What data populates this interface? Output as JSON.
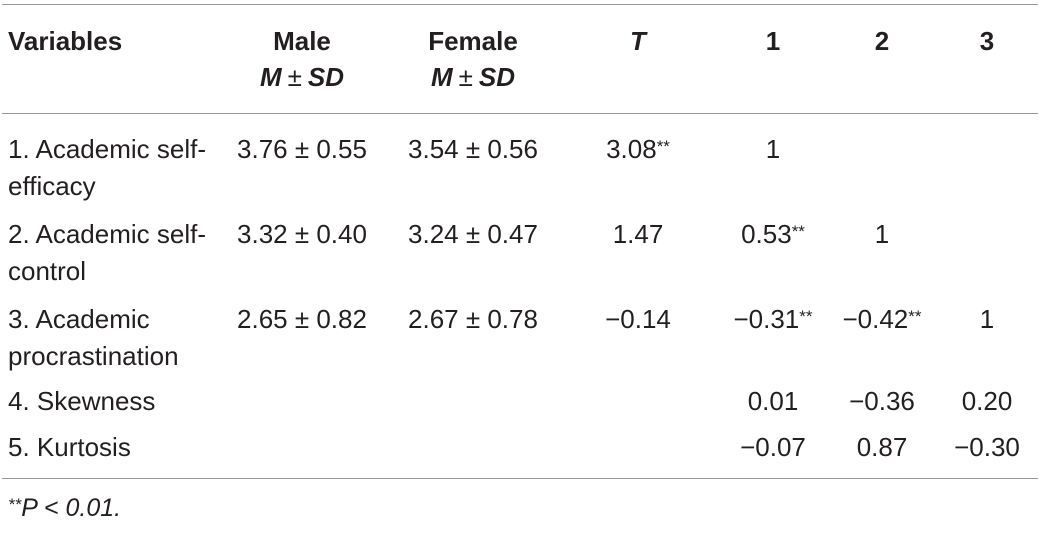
{
  "table": {
    "headers": {
      "variables": "Variables",
      "male": "Male",
      "female": "Female",
      "m": "M",
      "pm": "±",
      "sd": "SD",
      "t": "T",
      "c1": "1",
      "c2": "2",
      "c3": "3"
    },
    "rows": [
      {
        "variable": "1. Academic self-efficacy",
        "male": "3.76 ± 0.55",
        "female": "3.54 ± 0.56",
        "t": "3.08",
        "t_sig": "**",
        "c1": "1",
        "c1_sig": "",
        "c2": "",
        "c2_sig": "",
        "c3": "",
        "c3_sig": ""
      },
      {
        "variable": "2. Academic self-control",
        "male": "3.32 ± 0.40",
        "female": "3.24 ± 0.47",
        "t": "1.47",
        "t_sig": "",
        "c1": "0.53",
        "c1_sig": "**",
        "c2": "1",
        "c2_sig": "",
        "c3": "",
        "c3_sig": ""
      },
      {
        "variable": "3. Academic procrastination",
        "male": "2.65 ± 0.82",
        "female": "2.67 ± 0.78",
        "t": "−0.14",
        "t_sig": "",
        "c1": "−0.31",
        "c1_sig": "**",
        "c2": "−0.42",
        "c2_sig": "**",
        "c3": "1",
        "c3_sig": ""
      },
      {
        "variable": "4. Skewness",
        "male": "",
        "female": "",
        "t": "",
        "t_sig": "",
        "c1": "0.01",
        "c1_sig": "",
        "c2": "−0.36",
        "c2_sig": "",
        "c3": "0.20",
        "c3_sig": ""
      },
      {
        "variable": "5. Kurtosis",
        "male": "",
        "female": "",
        "t": "",
        "t_sig": "",
        "c1": "−0.07",
        "c1_sig": "",
        "c2": "0.87",
        "c2_sig": "",
        "c3": "−0.30",
        "c3_sig": ""
      }
    ],
    "footnote": {
      "mark": "**",
      "text": "P < 0.01."
    }
  }
}
